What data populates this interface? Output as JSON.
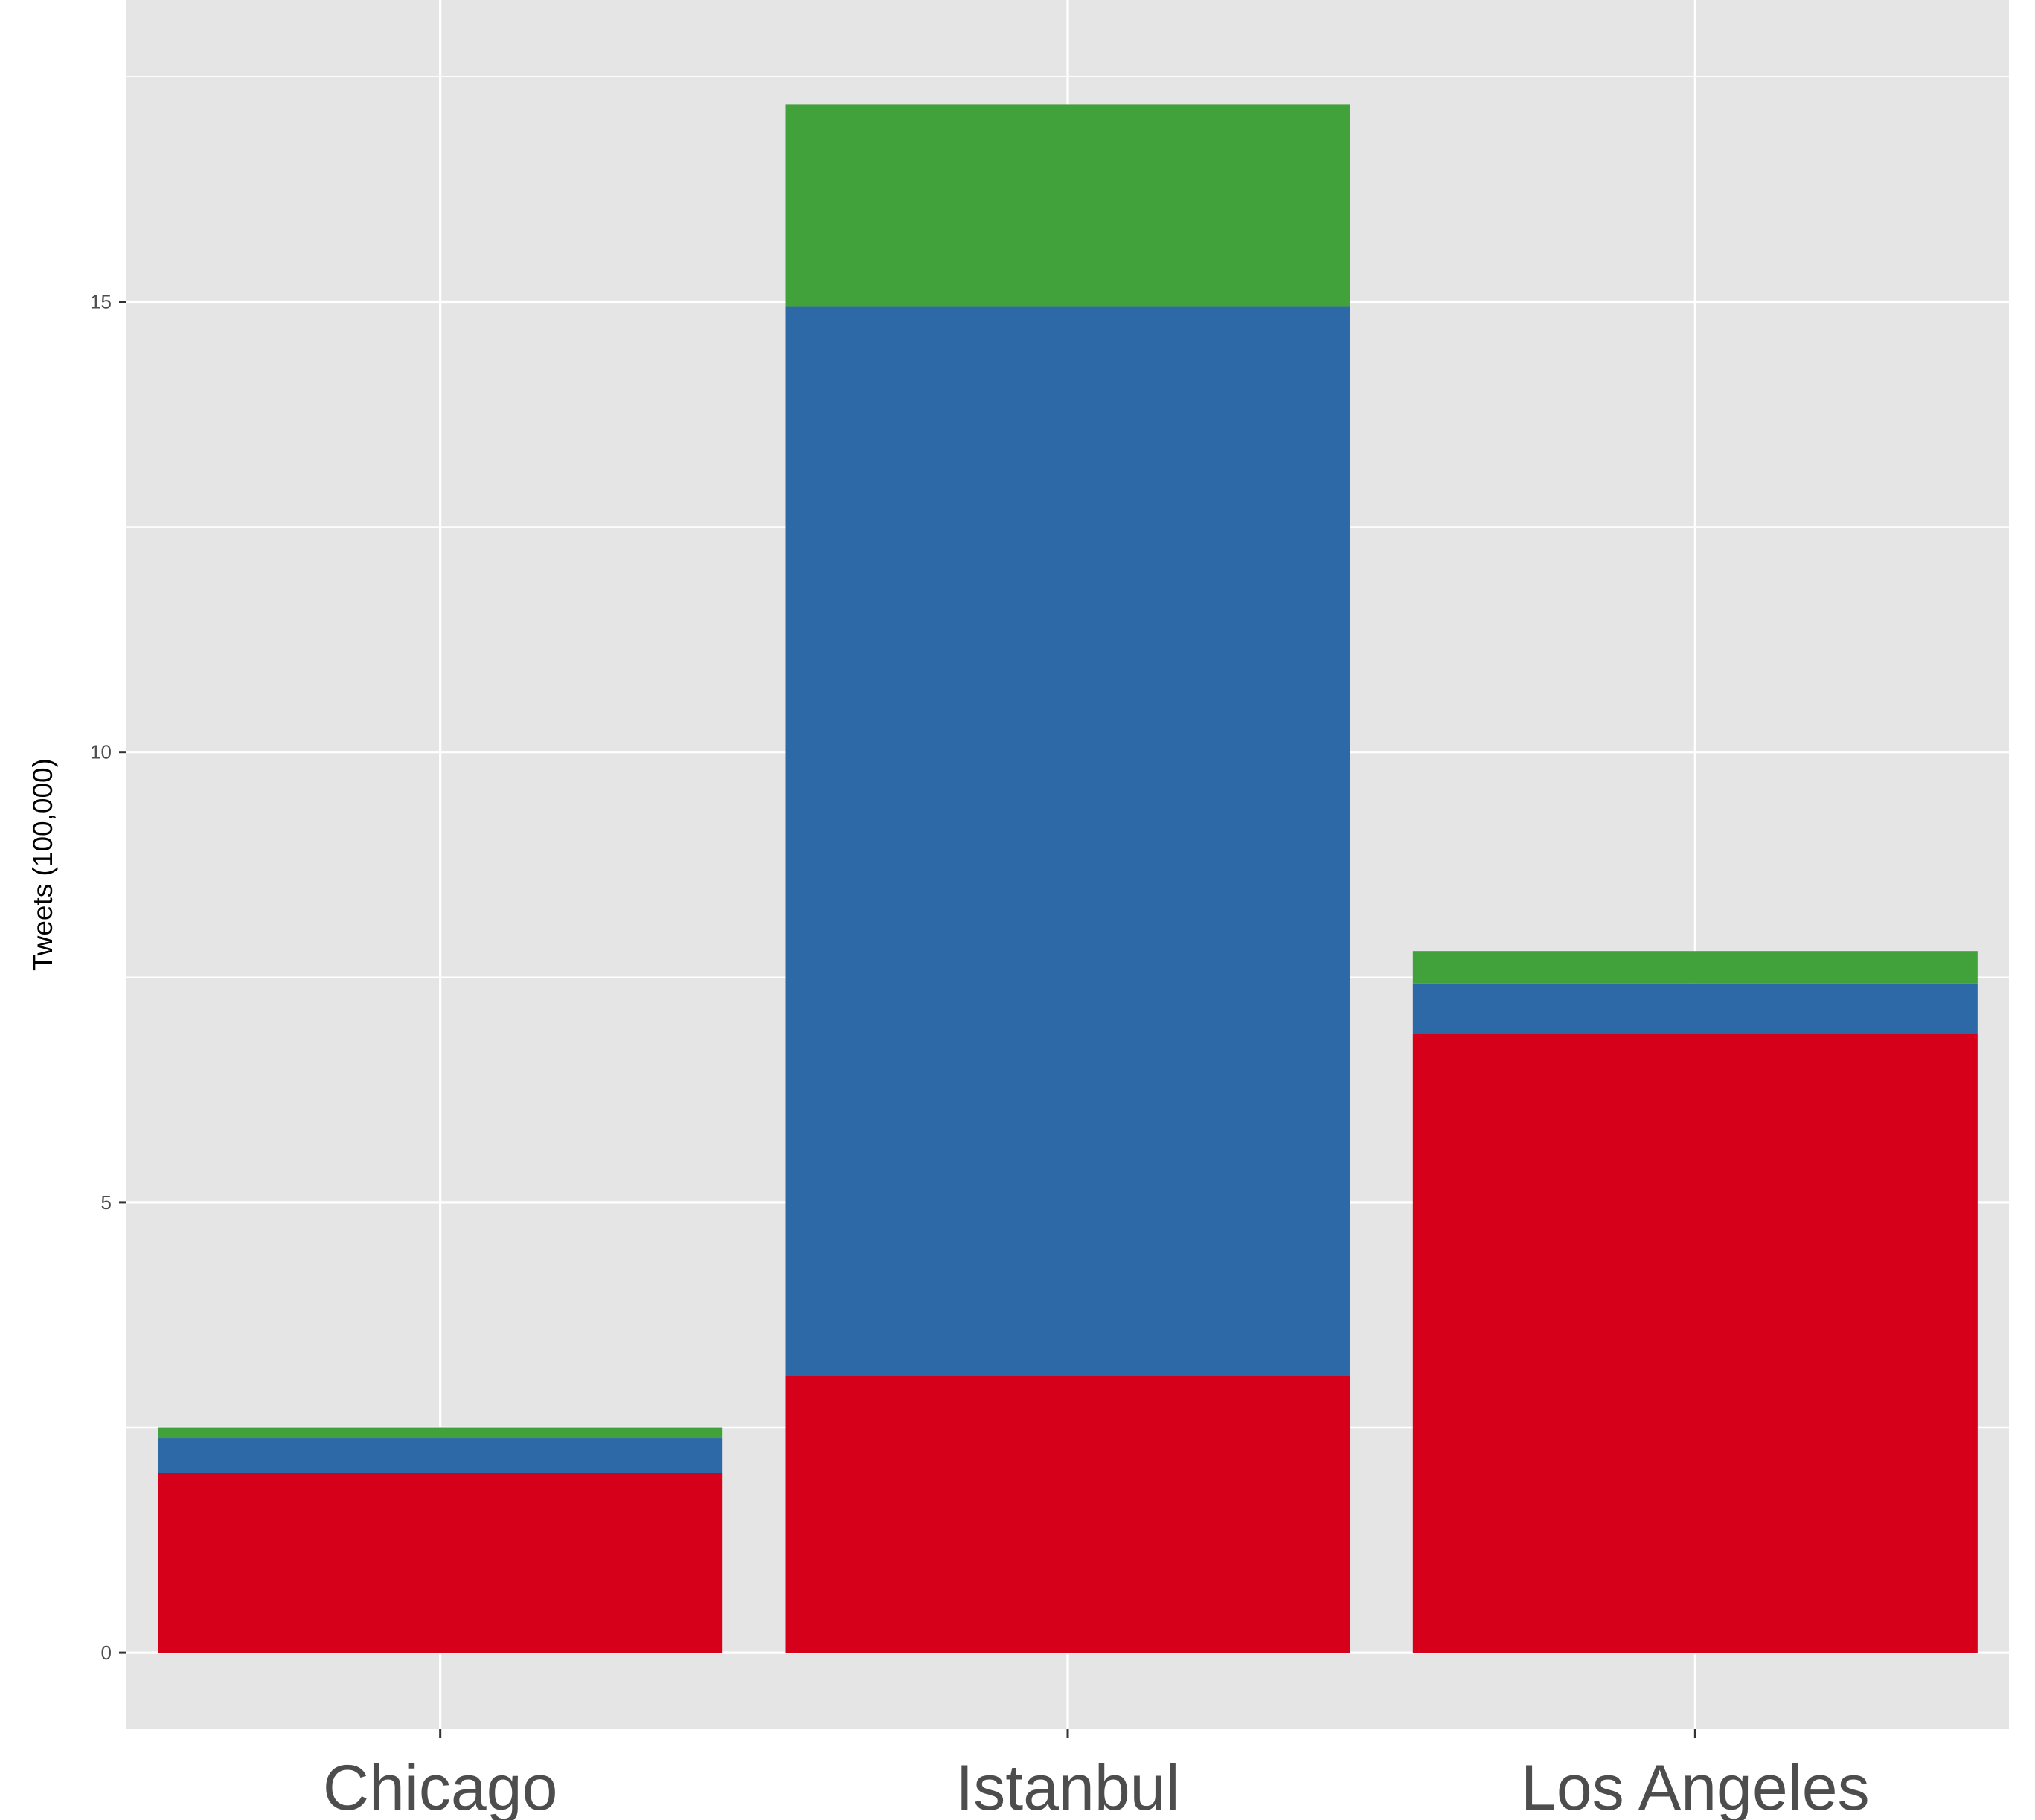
{
  "chart_data": {
    "type": "bar",
    "stacked": true,
    "categories": [
      "Chicago",
      "Istanbul",
      "Los Angeles"
    ],
    "series": [
      {
        "color": "#d7001a",
        "values": [
          2.0,
          3.08,
          6.87
        ]
      },
      {
        "color": "#2e69a7",
        "values": [
          0.38,
          11.87,
          0.56
        ]
      },
      {
        "color": "#41a13b",
        "values": [
          0.12,
          2.24,
          0.36
        ]
      }
    ],
    "ylabel": "Tweets (100,000)",
    "xlabel": "",
    "title": "",
    "yticks": [
      0,
      5,
      10,
      15
    ],
    "ylim": [
      -0.85,
      18.35
    ],
    "grid": true,
    "legend": "none",
    "panel_background": "#e5e5e5",
    "grid_color": "#ffffff"
  }
}
